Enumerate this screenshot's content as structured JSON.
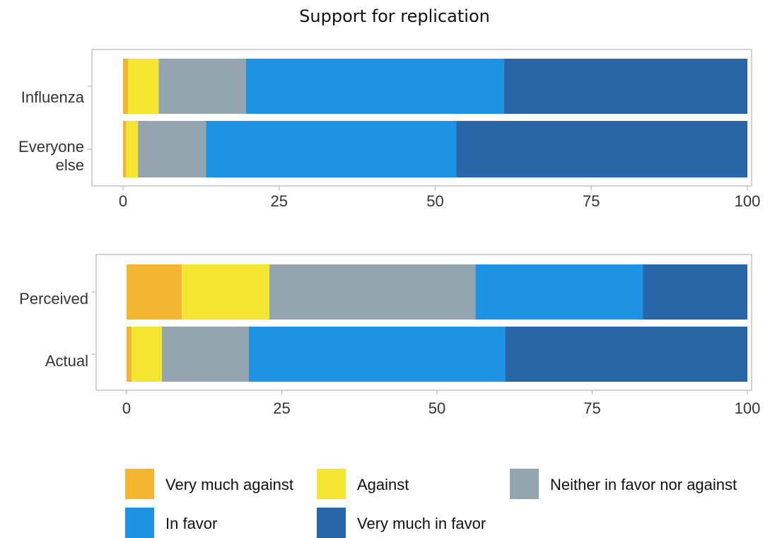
{
  "title": "Support for replication",
  "colors": {
    "very_much_against": "#F4B531",
    "against": "#F5E731",
    "neither": "#95A5AF",
    "in_favor": "#1E92E3",
    "very_much_in_favor": "#2866A8",
    "frame": "#BBBBBB",
    "axis_text": "#333333"
  },
  "legend": {
    "items": [
      {
        "label": "Very much against",
        "color": "#F4B531"
      },
      {
        "label": "Against",
        "color": "#F5E731"
      },
      {
        "label": "Neither in favor nor against",
        "color": "#95A5AF"
      },
      {
        "label": "In favor",
        "color": "#1E92E3"
      },
      {
        "label": "Very much in favor",
        "color": "#2866A8"
      }
    ]
  },
  "chart_data": [
    {
      "type": "bar",
      "orientation": "horizontal",
      "stacked": true,
      "categories": [
        "Influenza",
        "Everyone else"
      ],
      "series": [
        {
          "name": "Very much against",
          "values": [
            0.8,
            0.5
          ]
        },
        {
          "name": "Against",
          "values": [
            4.9,
            1.9
          ]
        },
        {
          "name": "Neither in favor nor against",
          "values": [
            14.0,
            10.9
          ]
        },
        {
          "name": "In favor",
          "values": [
            41.3,
            40.1
          ]
        },
        {
          "name": "Very much in favor",
          "values": [
            39.0,
            46.6
          ]
        }
      ],
      "xlim": [
        0,
        100
      ],
      "xticks": [
        "0",
        "25",
        "50",
        "75",
        "100"
      ],
      "xlabel": "",
      "ylabel": ""
    },
    {
      "type": "bar",
      "orientation": "horizontal",
      "stacked": true,
      "categories": [
        "Perceived",
        "Actual"
      ],
      "series": [
        {
          "name": "Very much against",
          "values": [
            8.9,
            0.8
          ]
        },
        {
          "name": "Against",
          "values": [
            14.1,
            4.9
          ]
        },
        {
          "name": "Neither in favor nor against",
          "values": [
            33.2,
            14.0
          ]
        },
        {
          "name": "In favor",
          "values": [
            27.0,
            41.3
          ]
        },
        {
          "name": "Very much in favor",
          "values": [
            16.8,
            39.0
          ]
        }
      ],
      "xlim": [
        0,
        100
      ],
      "xticks": [
        "0",
        "25",
        "50",
        "75",
        "100"
      ],
      "xlabel": "",
      "ylabel": ""
    }
  ]
}
